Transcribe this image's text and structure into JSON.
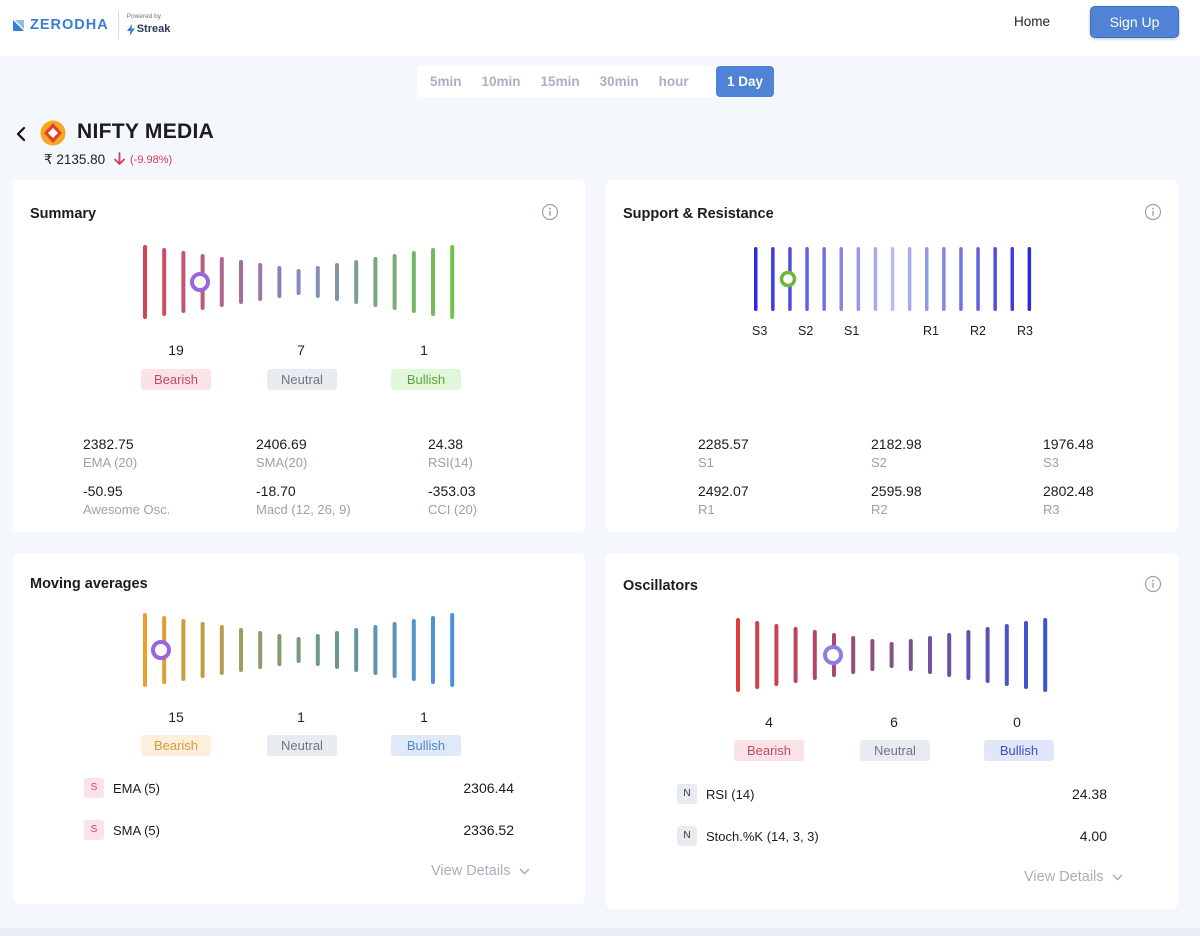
{
  "header": {
    "brand": "ZERODHA",
    "powered_by": "Powered by",
    "streak": "Streak",
    "home": "Home",
    "signup": "Sign Up",
    "brand_color": "#387ed1"
  },
  "intervals": [
    "5min",
    "10min",
    "15min",
    "30min",
    "hour",
    "1 Day"
  ],
  "active_interval": "1 Day",
  "instrument": {
    "name": "NIFTY MEDIA",
    "price": "₹ 2135.80",
    "change": "(-9.98%)"
  },
  "summary": {
    "title": "Summary",
    "counts": {
      "bearish": "19",
      "neutral": "7",
      "bullish": "1"
    },
    "labels": {
      "bearish": "Bearish",
      "neutral": "Neutral",
      "bullish": "Bullish"
    },
    "stats": [
      {
        "value": "2382.75",
        "label": "EMA (20)"
      },
      {
        "value": "2406.69",
        "label": "SMA(20)"
      },
      {
        "value": "24.38",
        "label": "RSI(14)"
      },
      {
        "value": "-50.95",
        "label": "Awesome Osc."
      },
      {
        "value": "-18.70",
        "label": "Macd (12, 26, 9)"
      },
      {
        "value": "-353.03",
        "label": "CCI (20)"
      }
    ]
  },
  "support_resistance": {
    "title": "Support & Resistance",
    "level_labels": [
      "S3",
      "S2",
      "S1",
      "R1",
      "R2",
      "R3"
    ],
    "stats": [
      {
        "value": "2285.57",
        "label": "S1"
      },
      {
        "value": "2182.98",
        "label": "S2"
      },
      {
        "value": "1976.48",
        "label": "S3"
      },
      {
        "value": "2492.07",
        "label": "R1"
      },
      {
        "value": "2595.98",
        "label": "R2"
      },
      {
        "value": "2802.48",
        "label": "R3"
      }
    ]
  },
  "moving_averages": {
    "title": "Moving averages",
    "counts": {
      "bearish": "15",
      "neutral": "1",
      "bullish": "1"
    },
    "labels": {
      "bearish": "Bearish",
      "neutral": "Neutral",
      "bullish": "Bullish"
    },
    "rows": [
      {
        "badge": "S",
        "name": "EMA (5)",
        "value": "2306.44"
      },
      {
        "badge": "S",
        "name": "SMA (5)",
        "value": "2336.52"
      }
    ],
    "view_details": "View Details"
  },
  "oscillators": {
    "title": "Oscillators",
    "counts": {
      "bearish": "4",
      "neutral": "6",
      "bullish": "0"
    },
    "labels": {
      "bearish": "Bearish",
      "neutral": "Neutral",
      "bullish": "Bullish"
    },
    "rows": [
      {
        "badge": "N",
        "name": "RSI (14)",
        "value": "24.38"
      },
      {
        "badge": "N",
        "name": "Stoch.%K (14, 3, 3)",
        "value": "4.00"
      }
    ],
    "view_details": "View Details"
  },
  "colors": {
    "accent": "#5083d6",
    "bearish": "#d23c57",
    "bullish": "#6cc048"
  }
}
